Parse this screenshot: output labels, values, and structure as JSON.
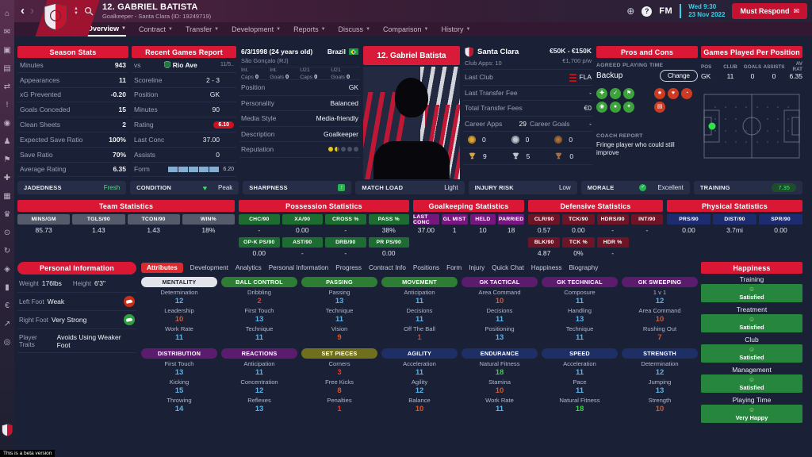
{
  "titlebar": {
    "player_title": "12. GABRIEL BATISTA",
    "player_subtitle": "Goalkeeper - Santa Clara (ID: 19249719)",
    "fm_logo": "FM",
    "time": "Wed 9:30",
    "date": "23 Nov 2022",
    "must_respond_label": "Must Respond"
  },
  "nav_tabs": [
    {
      "label": "Overview",
      "selected": true
    },
    {
      "label": "Contract",
      "selected": false
    },
    {
      "label": "Transfer",
      "selected": false
    },
    {
      "label": "Development",
      "selected": false
    },
    {
      "label": "Reports",
      "selected": false
    },
    {
      "label": "Discuss",
      "selected": false
    },
    {
      "label": "Comparison",
      "selected": false
    },
    {
      "label": "History",
      "selected": false
    }
  ],
  "sidebar_icons": [
    "home",
    "inbox",
    "squad",
    "tactics",
    "transfers",
    "news",
    "club",
    "staff",
    "training",
    "medical",
    "schedule",
    "competitions",
    "scouting",
    "refresh",
    "club-info",
    "job",
    "finances",
    "dynamics",
    "alerts"
  ],
  "season_stats": {
    "title": "Season Stats",
    "rows": [
      {
        "label": "Minutes",
        "value": "943"
      },
      {
        "label": "Appearances",
        "value": "11"
      },
      {
        "label": "xG Prevented",
        "value": "-0.20"
      },
      {
        "label": "Goals Conceded",
        "value": "15"
      },
      {
        "label": "Clean Sheets",
        "value": "2"
      },
      {
        "label": "Expected Save Ratio",
        "value": "100%"
      },
      {
        "label": "Save Ratio",
        "value": "70%"
      },
      {
        "label": "Average Rating",
        "value": "6.35"
      }
    ]
  },
  "recent_games": {
    "title": "Recent Games Report",
    "vs_label": "vs",
    "opponent": "Rio Ave",
    "match_date": "11/5..",
    "rows": [
      {
        "label": "Scoreline",
        "value": "2 - 3",
        "style": "plain"
      },
      {
        "label": "Position",
        "value": "GK",
        "style": "plain"
      },
      {
        "label": "Minutes",
        "value": "90",
        "style": "plain"
      },
      {
        "label": "Rating",
        "value": "6.10",
        "style": "badge"
      },
      {
        "label": "Last Conc",
        "value": "37.00",
        "style": "plain"
      },
      {
        "label": "Assists",
        "value": "0",
        "style": "plain"
      },
      {
        "label": "Form",
        "value": "6.20",
        "style": "form"
      }
    ],
    "form_bars": 5
  },
  "player_info": {
    "dob": "6/3/1998 (24 years old)",
    "birthplace": "São Gonçalo (RJ)",
    "nation": "Brazil",
    "caps": [
      {
        "label": "Int. Caps",
        "value": "0"
      },
      {
        "label": "Int. Goals",
        "value": "0"
      },
      {
        "label": "U21 Caps",
        "value": "0"
      },
      {
        "label": "U21 Goals",
        "value": "0"
      }
    ],
    "rows": [
      {
        "label": "Position",
        "value": "GK"
      },
      {
        "label": "Personality",
        "value": "Balanced"
      },
      {
        "label": "Media Style",
        "value": "Media-friendly"
      },
      {
        "label": "Description",
        "value": "Goalkeeper"
      }
    ],
    "reputation_label": "Reputation",
    "reputation": [
      "full",
      "half",
      "empty",
      "empty",
      "empty"
    ]
  },
  "photo_banner": "12. Gabriel Batista",
  "club_panel": {
    "club_name": "Santa Clara",
    "apps_label": "Club Apps:",
    "apps_value": "10",
    "value_range": "€50K - €150K",
    "wage": "€1,700 p/w",
    "rows": [
      {
        "label": "Last Club",
        "value": "FLA",
        "icon": "flamengo-badge"
      },
      {
        "label": "Last Transfer Fee",
        "value": "-",
        "icon": null
      },
      {
        "label": "Total Transfer Fees",
        "value": "€0",
        "icon": null
      }
    ],
    "career_apps_label": "Career Apps",
    "career_apps": "29",
    "career_goals_label": "Career Goals",
    "career_goals": "-",
    "medals": [
      {
        "type": "gold",
        "count": "0"
      },
      {
        "type": "silver",
        "count": "0"
      },
      {
        "type": "bronze",
        "count": "0"
      }
    ],
    "trophies": [
      {
        "type": "gold",
        "count": "9"
      },
      {
        "type": "silver",
        "count": "5"
      },
      {
        "type": "bronze",
        "count": "0"
      }
    ]
  },
  "pros_cons": {
    "title": "Pros and Cons",
    "playing_time_label": "AGREED PLAYING TIME",
    "playing_time": "Backup",
    "change_label": "Change",
    "pro_icons": [
      "fitness",
      "distribution",
      "set-play",
      "technique",
      "handling",
      "accuracy"
    ],
    "con_icons": [
      "star-quality",
      "consistency",
      "pressure",
      "report"
    ],
    "coach_report_label": "COACH REPORT",
    "coach_report": "Fringe player who could still improve"
  },
  "games_position": {
    "title": "Games Played Per Position",
    "headers": [
      "POS",
      "CLUB",
      "GOALS",
      "ASSISTS",
      "AV RAT"
    ],
    "row": [
      "GK",
      "11",
      "0",
      "0",
      "6.35"
    ]
  },
  "status_bar": [
    {
      "label": "JADEDNESS",
      "value": "Fresh",
      "value_style": "green-text",
      "icon": null
    },
    {
      "label": "CONDITION",
      "value": "Peak",
      "value_style": "plain",
      "icon": "heart"
    },
    {
      "label": "SHARPNESS",
      "value": "",
      "value_style": "plain",
      "icon": "sharpness"
    },
    {
      "label": "MATCH LOAD",
      "value": "Light",
      "value_style": "plain",
      "icon": null
    },
    {
      "label": "INJURY RISK",
      "value": "Low",
      "value_style": "plain",
      "icon": null
    },
    {
      "label": "MORALE",
      "value": "Excellent",
      "value_style": "plain",
      "icon": "morale"
    },
    {
      "label": "TRAINING",
      "value": "7.35",
      "value_style": "pill",
      "icon": null
    }
  ],
  "stat_panels": [
    {
      "title": "Team Statistics",
      "color": "gray",
      "cols": 4,
      "rows": [
        [
          {
            "label": "MINS/GM",
            "value": "85.73"
          },
          {
            "label": "TGLS/90",
            "value": "1.43"
          },
          {
            "label": "TCON/90",
            "value": "1.43"
          },
          {
            "label": "WIN%",
            "value": "18%"
          }
        ]
      ]
    },
    {
      "title": "Possession Statistics",
      "color": "green",
      "cols": 4,
      "rows": [
        [
          {
            "label": "CHC/90",
            "value": "-"
          },
          {
            "label": "XA/90",
            "value": "0.00"
          },
          {
            "label": "CROSS %",
            "value": "-"
          },
          {
            "label": "PASS %",
            "value": "38%"
          }
        ],
        [
          {
            "label": "OP-K PS/90",
            "value": "0.00"
          },
          {
            "label": "AST/90",
            "value": "-"
          },
          {
            "label": "DRB/90",
            "value": "-"
          },
          {
            "label": "PR PS/90",
            "value": "0.00"
          }
        ]
      ]
    },
    {
      "title": "Goalkeeping Statistics",
      "color": "purple",
      "cols": 4,
      "rows": [
        [
          {
            "label": "LAST CONC",
            "value": "37.00"
          },
          {
            "label": "GL MIST",
            "value": "1"
          },
          {
            "label": "HELD",
            "value": "10"
          },
          {
            "label": "PARRIED",
            "value": "18"
          }
        ]
      ]
    },
    {
      "title": "Defensive Statistics",
      "color": "darkred",
      "cols": 4,
      "rows": [
        [
          {
            "label": "CLR/90",
            "value": "0.57"
          },
          {
            "label": "TCK/90",
            "value": "0.00"
          },
          {
            "label": "HDRS/90",
            "value": "-"
          },
          {
            "label": "INT/90",
            "value": "-"
          }
        ],
        [
          {
            "label": "BLK/90",
            "value": "4.87"
          },
          {
            "label": "TCK %",
            "value": "0%"
          },
          {
            "label": "HDR %",
            "value": "-"
          }
        ]
      ]
    },
    {
      "title": "Physical Statistics",
      "color": "navy",
      "cols": 3,
      "rows": [
        [
          {
            "label": "PRS/90",
            "value": "0.00"
          },
          {
            "label": "DIST/90",
            "value": "3.7mi"
          },
          {
            "label": "SPR/90",
            "value": "0.00"
          }
        ]
      ]
    }
  ],
  "personal_info": {
    "title": "Personal Information",
    "weight_label": "Weight",
    "weight": "176lbs",
    "height_label": "Height",
    "height": "6'3\"",
    "left_foot_label": "Left Foot",
    "left_foot": "Weak",
    "right_foot_label": "Right Foot",
    "right_foot": "Very Strong",
    "traits_label": "Player Traits",
    "traits": "Avoids Using Weaker Foot"
  },
  "detail_tabs": [
    {
      "label": "Attributes",
      "selected": true
    },
    {
      "label": "Development",
      "selected": false
    },
    {
      "label": "Analytics",
      "selected": false
    },
    {
      "label": "Personal Information",
      "selected": false
    },
    {
      "label": "Progress",
      "selected": false
    },
    {
      "label": "Contract Info",
      "selected": false
    },
    {
      "label": "Positions",
      "selected": false
    },
    {
      "label": "Form",
      "selected": false
    },
    {
      "label": "Injury",
      "selected": false
    },
    {
      "label": "Quick Chat",
      "selected": false
    },
    {
      "label": "Happiness",
      "selected": false
    },
    {
      "label": "Biography",
      "selected": false
    }
  ],
  "attribute_groups": [
    {
      "name": "MENTALITY",
      "style": "light",
      "attrs": [
        {
          "label": "Determination",
          "value": 12
        },
        {
          "label": "Leadership",
          "value": 10
        },
        {
          "label": "Work Rate",
          "value": 11
        }
      ]
    },
    {
      "name": "BALL CONTROL",
      "style": "green",
      "attrs": [
        {
          "label": "Dribbling",
          "value": 2
        },
        {
          "label": "First Touch",
          "value": 13
        },
        {
          "label": "Technique",
          "value": 11
        }
      ]
    },
    {
      "name": "PASSING",
      "style": "green",
      "attrs": [
        {
          "label": "Passing",
          "value": 13
        },
        {
          "label": "Technique",
          "value": 11
        },
        {
          "label": "Vision",
          "value": 9
        }
      ]
    },
    {
      "name": "MOVEMENT",
      "style": "green",
      "attrs": [
        {
          "label": "Anticipation",
          "value": 11
        },
        {
          "label": "Decisions",
          "value": 11
        },
        {
          "label": "Off The Ball",
          "value": 1
        }
      ]
    },
    {
      "name": "GK TACTICAL",
      "style": "purple",
      "attrs": [
        {
          "label": "Area Command",
          "value": 10
        },
        {
          "label": "Decisions",
          "value": 11
        },
        {
          "label": "Positioning",
          "value": 13
        }
      ]
    },
    {
      "name": "GK TECHNICAL",
      "style": "purple",
      "attrs": [
        {
          "label": "Composure",
          "value": 11
        },
        {
          "label": "Handling",
          "value": 13
        },
        {
          "label": "Technique",
          "value": 11
        }
      ]
    },
    {
      "name": "GK SWEEPING",
      "style": "purple",
      "attrs": [
        {
          "label": "1 v 1",
          "value": 12
        },
        {
          "label": "Area Command",
          "value": 10
        },
        {
          "label": "Rushing Out",
          "value": 7
        }
      ]
    },
    {
      "name": "DISTRIBUTION",
      "style": "purple",
      "attrs": [
        {
          "label": "First Touch",
          "value": 13
        },
        {
          "label": "Kicking",
          "value": 15
        },
        {
          "label": "Throwing",
          "value": 14
        }
      ]
    },
    {
      "name": "REACTIONS",
      "style": "purple",
      "attrs": [
        {
          "label": "Anticipation",
          "value": 11
        },
        {
          "label": "Concentration",
          "value": 12
        },
        {
          "label": "Reflexes",
          "value": 13
        }
      ]
    },
    {
      "name": "SET PIECES",
      "style": "olive",
      "attrs": [
        {
          "label": "Corners",
          "value": 3
        },
        {
          "label": "Free Kicks",
          "value": 8
        },
        {
          "label": "Penalties",
          "value": 1
        }
      ]
    },
    {
      "name": "AGILITY",
      "style": "navy",
      "attrs": [
        {
          "label": "Acceleration",
          "value": 11
        },
        {
          "label": "Agility",
          "value": 12
        },
        {
          "label": "Balance",
          "value": 10
        }
      ]
    },
    {
      "name": "ENDURANCE",
      "style": "navy",
      "attrs": [
        {
          "label": "Natural Fitness",
          "value": 18
        },
        {
          "label": "Stamina",
          "value": 10
        },
        {
          "label": "Work Rate",
          "value": 11
        }
      ]
    },
    {
      "name": "SPEED",
      "style": "navy",
      "attrs": [
        {
          "label": "Acceleration",
          "value": 11
        },
        {
          "label": "Pace",
          "value": 11
        },
        {
          "label": "Natural Fitness",
          "value": 18
        }
      ]
    },
    {
      "name": "STRENGTH",
      "style": "navy",
      "attrs": [
        {
          "label": "Determination",
          "value": 12
        },
        {
          "label": "Jumping",
          "value": 13
        },
        {
          "label": "Strength",
          "value": 10
        }
      ]
    }
  ],
  "happiness": {
    "title": "Happiness",
    "items": [
      {
        "label": "Training",
        "status": "Satisfied",
        "level": "satisfied"
      },
      {
        "label": "Treatment",
        "status": "Satisfied",
        "level": "satisfied"
      },
      {
        "label": "Club",
        "status": "Satisfied",
        "level": "satisfied"
      },
      {
        "label": "Management",
        "status": "Satisfied",
        "level": "satisfied"
      },
      {
        "label": "Playing Time",
        "status": "Very Happy",
        "level": "very-happy"
      }
    ]
  },
  "beta_note": "This is a beta version",
  "colors": {
    "accent_red": "#d91a38",
    "time_cyan": "#38d1e8",
    "positive_green": "#2f9e4f"
  }
}
